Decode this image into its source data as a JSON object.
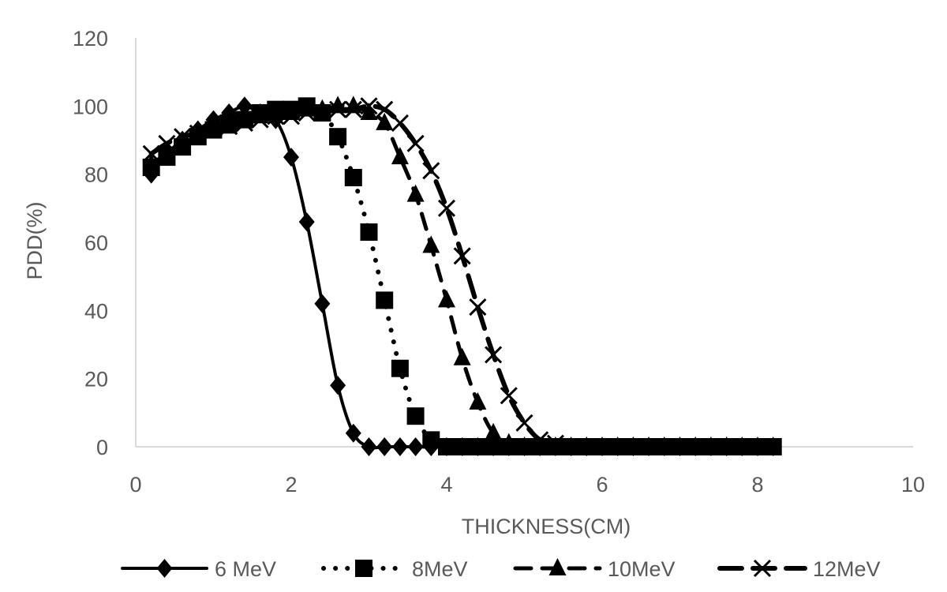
{
  "chart_data": {
    "type": "line",
    "title": "",
    "xlabel": "THICKNESS(CM)",
    "ylabel": "PDD(%)",
    "xlim": [
      0,
      10
    ],
    "ylim": [
      0,
      120
    ],
    "x_ticks": [
      "0",
      "2",
      "4",
      "6",
      "8",
      "10"
    ],
    "y_ticks": [
      "0",
      "20",
      "40",
      "60",
      "80",
      "100",
      "120"
    ],
    "grid": false,
    "legend_position": "bottom",
    "colors": {
      "series": "#000000",
      "axis": "#d9d9d9",
      "text": "#595959"
    },
    "series": [
      {
        "name": "6 MeV",
        "marker": "diamond",
        "line_style": "solid",
        "x": [
          0.2,
          0.4,
          0.6,
          0.8,
          1.0,
          1.2,
          1.4,
          1.6,
          1.8,
          2.0,
          2.2,
          2.4,
          2.6,
          2.8,
          3.0,
          3.2,
          3.4,
          3.6,
          3.8,
          4.0,
          4.2,
          4.4,
          4.6,
          4.8,
          5.0,
          5.2,
          5.4,
          5.6,
          5.8,
          6.0,
          6.2,
          6.4,
          6.6,
          6.8,
          7.0,
          7.2,
          7.4,
          7.6,
          7.8,
          8.0,
          8.2
        ],
        "y": [
          80,
          86,
          90,
          93,
          96,
          98,
          100,
          98,
          96,
          85,
          66,
          42,
          18,
          4,
          0,
          0,
          0,
          0,
          0,
          0,
          0,
          0,
          0,
          0,
          0,
          0,
          0,
          0,
          0,
          0,
          0,
          0,
          0,
          0,
          0,
          0,
          0,
          0,
          0,
          0,
          0
        ]
      },
      {
        "name": "8MeV",
        "marker": "square",
        "line_style": "dotted",
        "x": [
          0.2,
          0.4,
          0.6,
          0.8,
          1.0,
          1.2,
          1.4,
          1.6,
          1.8,
          2.0,
          2.2,
          2.4,
          2.6,
          2.8,
          3.0,
          3.2,
          3.4,
          3.6,
          3.8,
          4.0,
          4.2,
          4.4,
          4.6,
          4.8,
          5.0,
          5.2,
          5.4,
          5.6,
          5.8,
          6.0,
          6.2,
          6.4,
          6.6,
          6.8,
          7.0,
          7.2,
          7.4,
          7.6,
          7.8,
          8.0,
          8.2
        ],
        "y": [
          82,
          85,
          88,
          91,
          93,
          95,
          96,
          98,
          99,
          99,
          100,
          98,
          91,
          79,
          63,
          43,
          23,
          9,
          2,
          0,
          0,
          0,
          0,
          0,
          0,
          0,
          0,
          0,
          0,
          0,
          0,
          0,
          0,
          0,
          0,
          0,
          0,
          0,
          0,
          0,
          0
        ]
      },
      {
        "name": "10MeV",
        "marker": "triangle",
        "line_style": "dashed",
        "x": [
          0.2,
          0.4,
          0.6,
          0.8,
          1.0,
          1.2,
          1.4,
          1.6,
          1.8,
          2.0,
          2.2,
          2.4,
          2.6,
          2.8,
          3.0,
          3.2,
          3.4,
          3.6,
          3.8,
          4.0,
          4.2,
          4.4,
          4.6,
          4.8,
          5.0,
          5.2,
          5.4,
          5.6,
          5.8,
          6.0,
          6.2,
          6.4,
          6.6,
          6.8,
          7.0,
          7.2,
          7.4,
          7.6,
          7.8,
          8.0,
          8.2
        ],
        "y": [
          83,
          86,
          89,
          91,
          93,
          94,
          96,
          97,
          98,
          98,
          99,
          99,
          100,
          100,
          98,
          95,
          85,
          74,
          59,
          43,
          26,
          13,
          4,
          1,
          0,
          0,
          0,
          0,
          0,
          0,
          0,
          0,
          0,
          0,
          0,
          0,
          0,
          0,
          0,
          0,
          0
        ]
      },
      {
        "name": "12MeV",
        "marker": "x",
        "line_style": "long-dash",
        "x": [
          0.2,
          0.4,
          0.6,
          0.8,
          1.0,
          1.2,
          1.4,
          1.6,
          1.8,
          2.0,
          2.2,
          2.4,
          2.6,
          2.8,
          3.0,
          3.2,
          3.4,
          3.6,
          3.8,
          4.0,
          4.2,
          4.4,
          4.6,
          4.8,
          5.0,
          5.2,
          5.4,
          5.6,
          5.8,
          6.0,
          6.2,
          6.4,
          6.6,
          6.8,
          7.0,
          7.2,
          7.4,
          7.6,
          7.8,
          8.0,
          8.2
        ],
        "y": [
          86,
          89,
          91,
          92,
          93,
          94,
          95,
          96,
          97,
          97,
          98,
          98,
          99,
          99,
          100,
          99,
          95,
          89,
          81,
          70,
          56,
          41,
          27,
          15,
          7,
          2,
          1,
          0,
          0,
          0,
          0,
          0,
          0,
          0,
          0,
          0,
          0,
          0,
          0,
          0,
          0
        ]
      }
    ]
  }
}
